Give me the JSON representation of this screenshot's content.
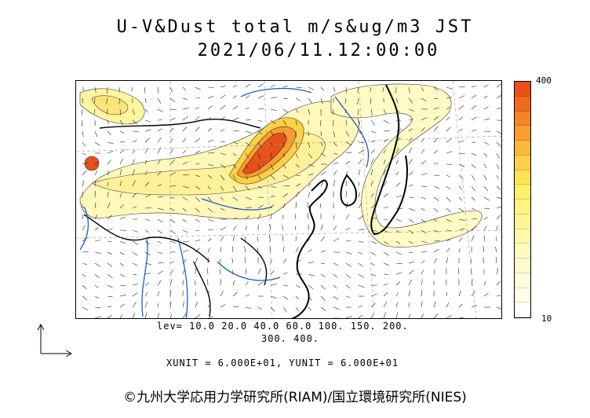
{
  "title": "U-V&Dust total m/s&ug/m3 JST",
  "datetime": "2021/06/11.12:00:00",
  "colorbar": {
    "max_label": "400",
    "min_label": "10",
    "colors": [
      "#e8501a",
      "#f06a1e",
      "#f48428",
      "#f89e30",
      "#fbb83a",
      "#fdd048",
      "#ffe458",
      "#fff06a",
      "#fff47e",
      "#fff794",
      "#fff9a8",
      "#fffbbb",
      "#fffccc",
      "#fffdda",
      "#fffee6",
      "#ffffff"
    ]
  },
  "levels_line1": "lev= 10.0 20.0 40.0 60.0 100. 150. 200.",
  "levels_line2": "300. 400.",
  "units_line": "XUNIT = 6.000E+01, YUNIT = 6.000E+01",
  "copyright": "©九州大学応用力学研究所(RIAM)/国立環境研究所(NIES)"
}
